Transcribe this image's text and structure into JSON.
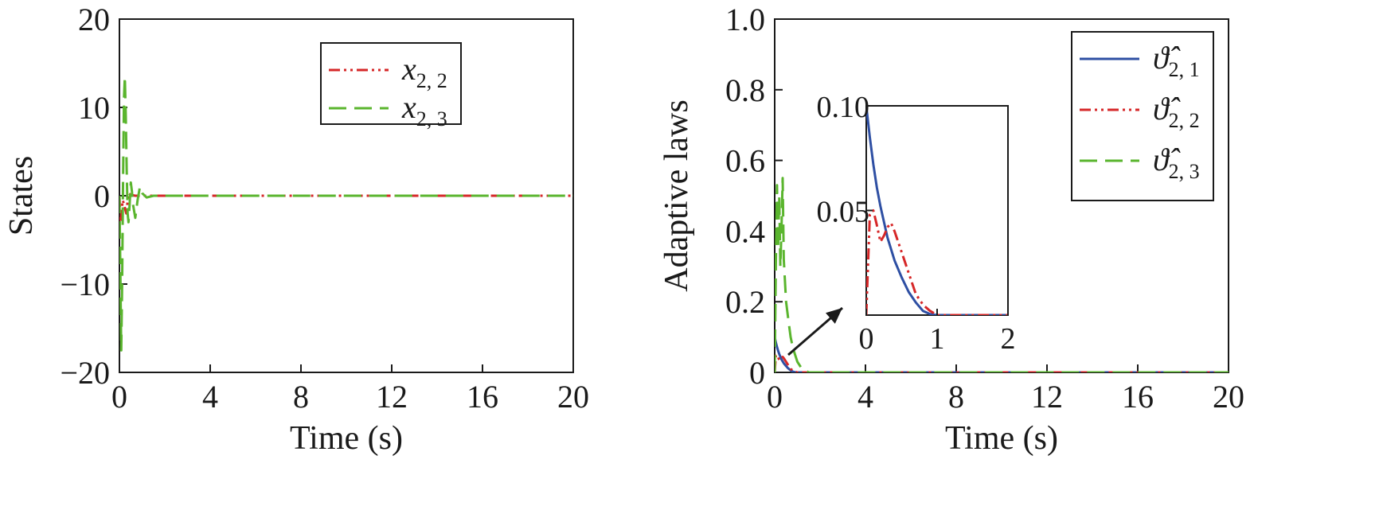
{
  "chart_data": [
    {
      "type": "line",
      "xlabel": "Time (s)",
      "ylabel": "States",
      "xlim": [
        0,
        20
      ],
      "ylim": [
        -20,
        20
      ],
      "xticks": [
        "0",
        "4",
        "8",
        "12",
        "16",
        "20"
      ],
      "yticks": [
        "20",
        "10",
        "0",
        "−10",
        "−20"
      ],
      "legend_position": "top-right",
      "grid": false,
      "series": [
        {
          "name": "x",
          "name_sub": "2, 2",
          "color": "#d62728",
          "dash": "dashdotdot",
          "x": [
            0,
            0.05,
            0.1,
            0.15,
            0.2,
            0.3,
            0.4,
            0.5,
            0.7,
            1.0,
            2,
            4,
            6,
            8,
            10,
            12,
            14,
            16,
            18,
            20
          ],
          "y": [
            0,
            -3,
            -1.5,
            -0.5,
            -1,
            -2,
            0.3,
            0.1,
            0,
            0,
            0,
            0,
            0,
            0,
            0,
            0,
            0,
            0,
            0,
            0
          ]
        },
        {
          "name": "x",
          "name_sub": "2, 3",
          "color": "#5ab52e",
          "dash": "longdash",
          "x": [
            0,
            0.04,
            0.08,
            0.12,
            0.16,
            0.2,
            0.24,
            0.28,
            0.32,
            0.36,
            0.4,
            0.45,
            0.5,
            0.55,
            0.6,
            0.7,
            0.8,
            0.9,
            1.0,
            1.2,
            1.5,
            2,
            4,
            8,
            12,
            16,
            20
          ],
          "y": [
            0,
            -8,
            -17.5,
            -10,
            2,
            11,
            13.5,
            9,
            3,
            -2,
            -3,
            -1,
            1.5,
            0.5,
            -1,
            -2.5,
            -0.5,
            1,
            0.3,
            -0.2,
            0,
            0,
            0,
            0,
            0,
            0,
            0
          ]
        }
      ]
    },
    {
      "type": "line",
      "xlabel": "Time (s)",
      "ylabel": "Adaptive laws",
      "xlim": [
        0,
        20
      ],
      "ylim": [
        0,
        1.0
      ],
      "xticks": [
        "0",
        "4",
        "8",
        "12",
        "16",
        "20"
      ],
      "yticks": [
        "1.0",
        "0.8",
        "0.6",
        "0.4",
        "0.2",
        "0"
      ],
      "legend_position": "top-right",
      "grid": false,
      "series": [
        {
          "name": "ϑ̂",
          "name_sub": "2, 1",
          "color": "#2e4fa3",
          "dash": "solid",
          "x": [
            0,
            0.05,
            0.1,
            0.15,
            0.2,
            0.3,
            0.4,
            0.5,
            0.6,
            0.7,
            0.8,
            0.9,
            1.0,
            2,
            20
          ],
          "y": [
            0.1,
            0.085,
            0.072,
            0.061,
            0.052,
            0.037,
            0.026,
            0.018,
            0.011,
            0.006,
            0.002,
            0.0005,
            0,
            0,
            0
          ]
        },
        {
          "name": "ϑ̂",
          "name_sub": "2, 2",
          "color": "#d62728",
          "dash": "dashdotdot",
          "x": [
            0,
            0.05,
            0.1,
            0.15,
            0.2,
            0.25,
            0.3,
            0.35,
            0.4,
            0.5,
            0.6,
            0.7,
            0.8,
            0.9,
            1.0,
            2,
            20
          ],
          "y": [
            0,
            0.048,
            0.05,
            0.043,
            0.035,
            0.038,
            0.042,
            0.044,
            0.04,
            0.03,
            0.02,
            0.01,
            0.005,
            0.002,
            0,
            0,
            0
          ]
        },
        {
          "name": "ϑ̂",
          "name_sub": "2, 3",
          "color": "#5ab52e",
          "dash": "longdash",
          "x": [
            0,
            0.05,
            0.1,
            0.15,
            0.2,
            0.25,
            0.3,
            0.35,
            0.4,
            0.5,
            0.6,
            0.7,
            0.8,
            0.9,
            1.0,
            1.2,
            1.5,
            2,
            20
          ],
          "y": [
            0,
            0.3,
            0.53,
            0.35,
            0.5,
            0.3,
            0.4,
            0.55,
            0.32,
            0.2,
            0.15,
            0.1,
            0.07,
            0.05,
            0.03,
            0.01,
            0,
            0,
            0
          ]
        }
      ],
      "inset": {
        "xlim": [
          0,
          2
        ],
        "ylim": [
          0,
          0.1
        ],
        "xticks": [
          "0",
          "1",
          "2"
        ],
        "yticks": [
          "0.10",
          "0.05"
        ]
      }
    }
  ]
}
